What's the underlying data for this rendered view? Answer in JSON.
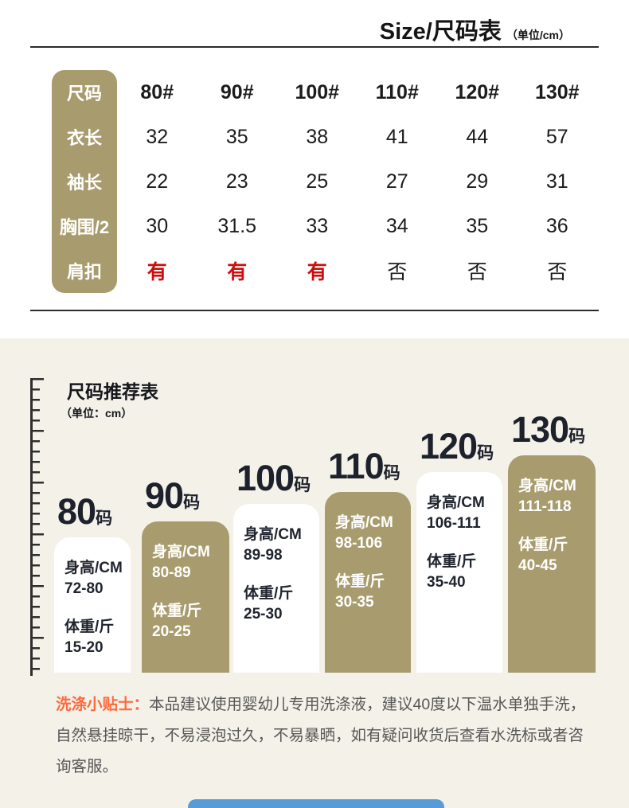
{
  "colors": {
    "khaki": "#a89c6e",
    "section_background": "#f4f1e9",
    "highlight_red": "#cc0e0e",
    "tip_orange": "#fd6a3d",
    "bottom_bar_blue": "#579bd7"
  },
  "chart_data": [
    {
      "type": "table",
      "title": "Size/尺码表",
      "unit_note": "（单位/cm）",
      "row_headers": [
        "尺码",
        "衣长",
        "袖长",
        "胸围/2",
        "肩扣"
      ],
      "columns": [
        "80#",
        "90#",
        "100#",
        "110#",
        "120#",
        "130#"
      ],
      "rows": [
        [
          "32",
          "35",
          "38",
          "41",
          "44",
          "57"
        ],
        [
          "22",
          "23",
          "25",
          "27",
          "29",
          "31"
        ],
        [
          "30",
          "31.5",
          "33",
          "34",
          "35",
          "36"
        ],
        [
          "有",
          "有",
          "有",
          "否",
          "否",
          "否"
        ]
      ]
    },
    {
      "type": "bar",
      "title": "尺码推荐表",
      "unit_note": "（单位：cm）",
      "category_suffix": "码",
      "legend": [
        "身高/CM",
        "体重/斤"
      ],
      "bars": [
        {
          "size": "80",
          "height_label": "身高/CM",
          "height_range": "72-80",
          "weight_label": "体重/斤",
          "weight_range": "15-20"
        },
        {
          "size": "90",
          "height_label": "身高/CM",
          "height_range": "80-89",
          "weight_label": "体重/斤",
          "weight_range": "20-25"
        },
        {
          "size": "100",
          "height_label": "身高/CM",
          "height_range": "89-98",
          "weight_label": "体重/斤",
          "weight_range": "25-30"
        },
        {
          "size": "110",
          "height_label": "身高/CM",
          "height_range": "98-106",
          "weight_label": "体重/斤",
          "weight_range": "30-35"
        },
        {
          "size": "120",
          "height_label": "身高/CM",
          "height_range": "106-111",
          "weight_label": "体重/斤",
          "weight_range": "35-40"
        },
        {
          "size": "130",
          "height_label": "身高/CM",
          "height_range": "111-118",
          "weight_label": "体重/斤",
          "weight_range": "40-45"
        }
      ]
    }
  ],
  "wash_tips": {
    "label": "洗涤小贴士：",
    "text": "本品建议使用婴幼儿专用洗涤液，建议40度以下温水单独手洗，自然悬挂晾干，不易浸泡过久，不易暴晒，如有疑问收货后查看水洗标或者咨询客服。"
  }
}
